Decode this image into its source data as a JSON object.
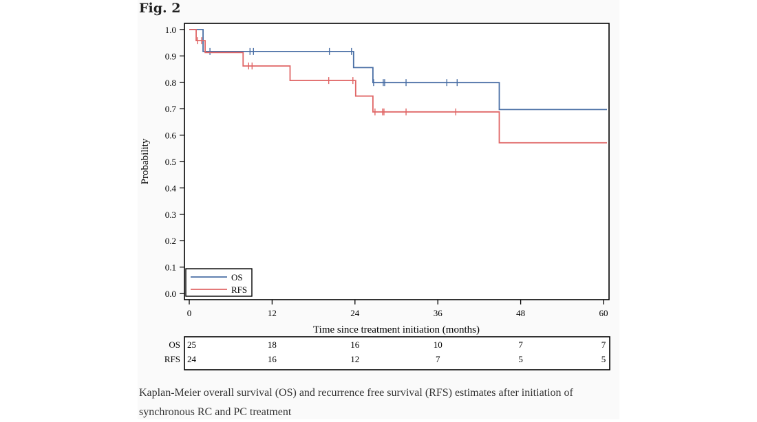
{
  "figure": {
    "label": "Fig. 2",
    "caption_line1": "Kaplan-Meier overall survival (OS) and recurrence free survival (RFS) estimates after initiation of",
    "caption_line2": "synchronous RC and PC treatment"
  },
  "colors": {
    "os": "#4a6fa5",
    "rfs": "#e06666",
    "axis": "#000000"
  },
  "chart_data": {
    "type": "line",
    "step": true,
    "title": "",
    "xlabel": "Time since treatment initiation (months)",
    "ylabel": "Probability",
    "xlim": [
      0,
      60
    ],
    "ylim": [
      0,
      1
    ],
    "x_ticks": [
      0,
      12,
      24,
      36,
      48,
      60
    ],
    "y_ticks": [
      0.0,
      0.1,
      0.2,
      0.3,
      0.4,
      0.5,
      0.6,
      0.7,
      0.8,
      0.9,
      1.0
    ],
    "y_tick_labels": [
      "0.0",
      "0.1",
      "0.2",
      "0.3",
      "0.4",
      "0.5",
      "0.6",
      "0.7",
      "0.8",
      "0.9",
      "1.0"
    ],
    "legend_position": "bottom-left",
    "series": [
      {
        "name": "OS",
        "color": "#4a6fa5",
        "steps": [
          [
            0,
            1.0
          ],
          [
            2,
            0.917
          ],
          [
            23.8,
            0.856
          ],
          [
            26.6,
            0.799
          ],
          [
            44.9,
            0.697
          ],
          [
            60.5,
            0.697
          ]
        ],
        "censor_times": [
          3,
          8.8,
          9.3,
          20.3,
          23.5,
          26.7,
          28.1,
          28.3,
          31.4,
          37.3,
          38.8
        ]
      },
      {
        "name": "RFS",
        "color": "#e06666",
        "steps": [
          [
            0,
            1.0
          ],
          [
            1,
            0.958
          ],
          [
            2.3,
            0.913
          ],
          [
            7.8,
            0.862
          ],
          [
            14.6,
            0.807
          ],
          [
            24.1,
            0.748
          ],
          [
            26.6,
            0.688
          ],
          [
            44.9,
            0.571
          ],
          [
            60.5,
            0.571
          ]
        ],
        "censor_times": [
          1.2,
          1.8,
          8.6,
          9.1,
          20.2,
          23.7,
          26.9,
          28.0,
          28.2,
          31.4,
          38.6
        ]
      }
    ],
    "risk_table": {
      "times": [
        0,
        12,
        24,
        36,
        48,
        60
      ],
      "rows": [
        {
          "label": "OS",
          "values": [
            "25",
            "18",
            "16",
            "10",
            "7",
            "7"
          ]
        },
        {
          "label": "RFS",
          "values": [
            "24",
            "16",
            "12",
            "7",
            "5",
            "5"
          ]
        }
      ]
    }
  }
}
